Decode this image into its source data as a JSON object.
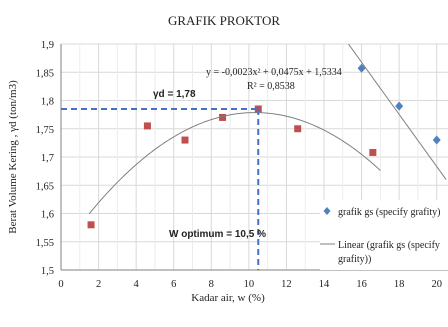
{
  "chart_data": {
    "type": "scatter",
    "title": "GRAFIK PROKTOR",
    "xlabel": "Kadar air, w (%)",
    "ylabel": "Berat Volume Kering , γd (ton/m3)",
    "xlim": [
      0,
      20
    ],
    "ylim": [
      1.5,
      1.9
    ],
    "x_ticks": [
      "0",
      "2",
      "4",
      "6",
      "8",
      "10",
      "12",
      "14",
      "16",
      "18",
      "20"
    ],
    "y_ticks": [
      "1,5",
      "1,55",
      "1,6",
      "1,65",
      "1,7",
      "1,75",
      "1,8",
      "1,85",
      "1,9"
    ],
    "grid": true,
    "legend_position": "right",
    "series": [
      {
        "kind": "scatter",
        "marker": "square",
        "color": "#c0504d",
        "x": [
          1.6,
          4.6,
          6.6,
          8.6,
          10.5,
          12.6,
          16.6
        ],
        "y": [
          1.58,
          1.755,
          1.73,
          1.77,
          1.785,
          1.75,
          1.708
        ]
      },
      {
        "name": "grafik gs (specify grafity)",
        "kind": "scatter",
        "marker": "diamond",
        "color": "#4f81bd",
        "x": [
          16,
          18,
          20
        ],
        "y": [
          1.857,
          1.79,
          1.73
        ]
      },
      {
        "name": "Linear (grafik gs (specify grafity))",
        "kind": "line",
        "color": "#808080",
        "x": [
          15.3,
          20.5
        ],
        "y": [
          1.9,
          1.66
        ]
      },
      {
        "kind": "poly",
        "color": "#808080",
        "coefficients": [
          -0.0023,
          0.0475,
          1.5334
        ],
        "x_range": [
          1.5,
          17
        ]
      }
    ],
    "legend": [
      "grafik gs (specify grafity)",
      "Linear (grafik gs (specify grafity))"
    ],
    "annotations": {
      "equation": "y = -0,0023x² + 0,0475x + 1,5334",
      "r_squared": "R² = 0,8538",
      "yd_label": "γd = 1,78",
      "yd_value": 1.785,
      "w_opt_label": "W optimum = 10,5 %",
      "w_opt_value": 10.5
    }
  }
}
